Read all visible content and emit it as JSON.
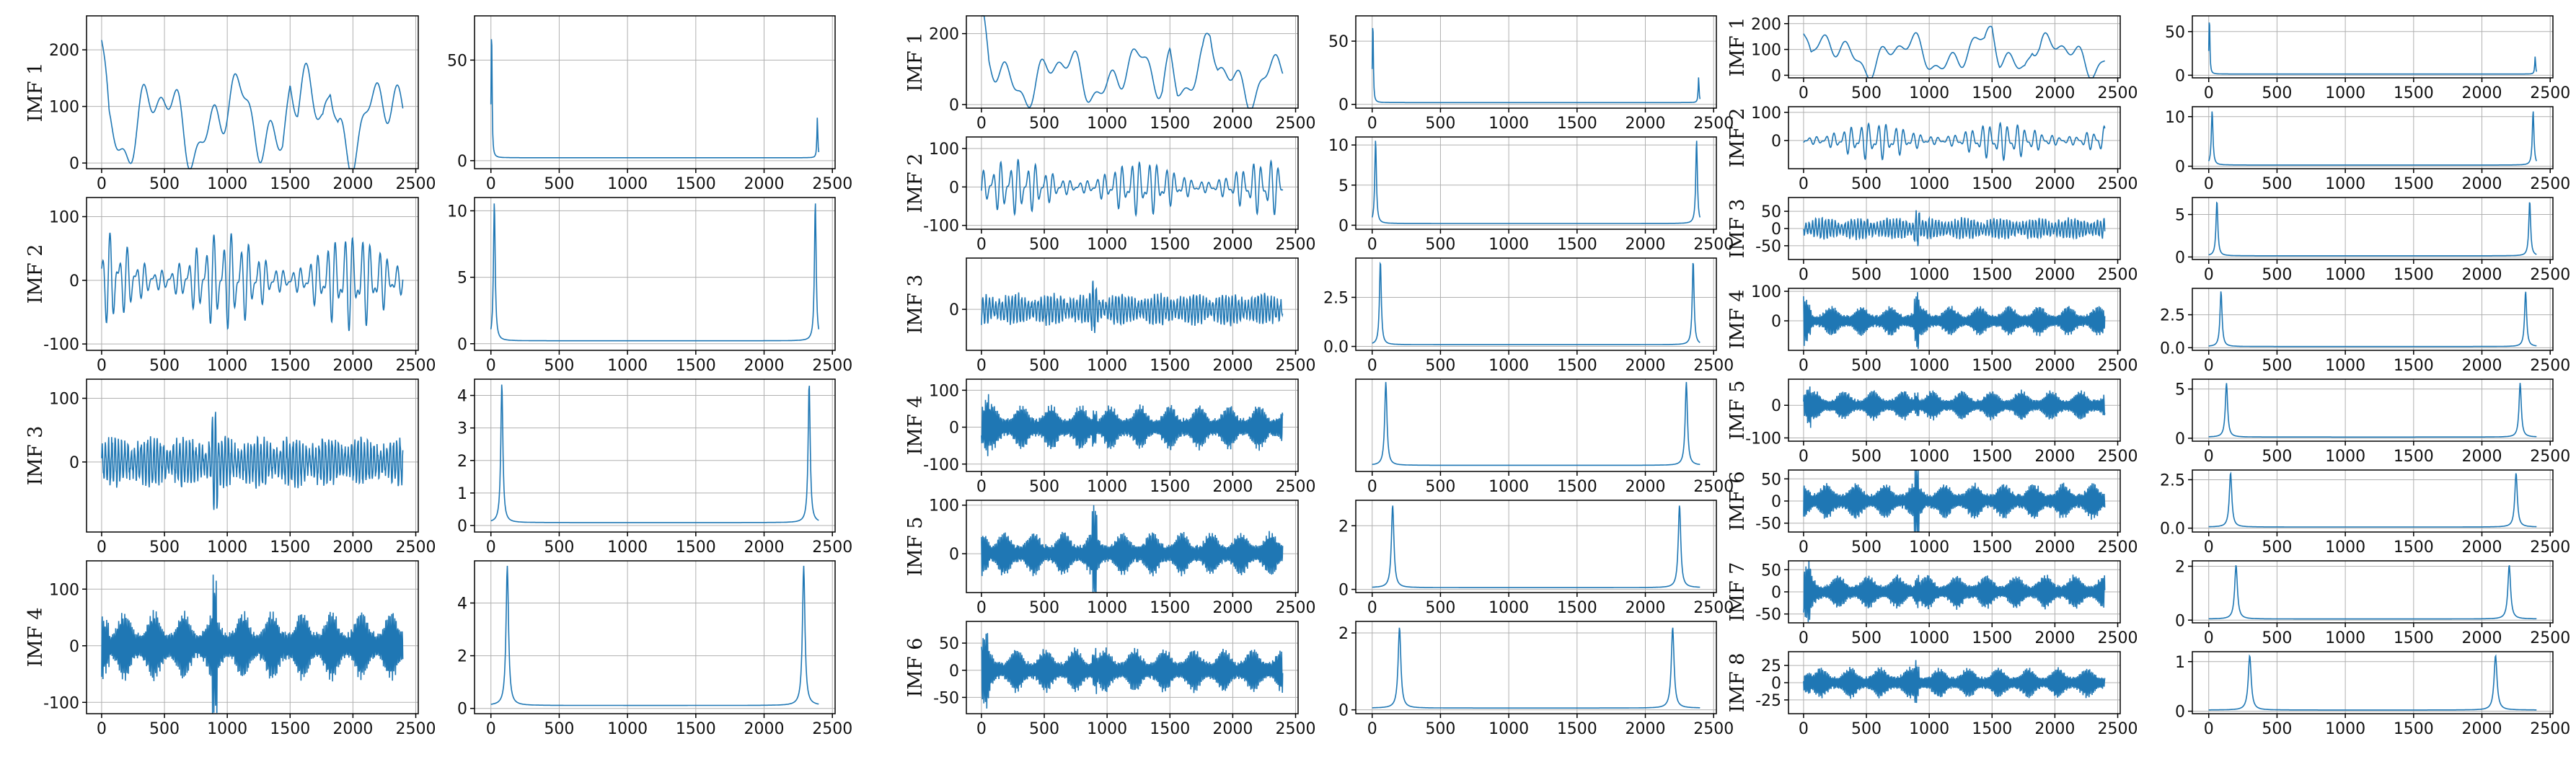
{
  "colors": {
    "line": "#1f77b4",
    "grid": "#b0b0b0",
    "frame": "#000000"
  },
  "x_ticks": [
    "0",
    "500",
    "1000",
    "1500",
    "2000",
    "2500"
  ],
  "chart_data": [
    {
      "type": "line",
      "group": "left",
      "xlim": [
        0,
        2500
      ],
      "rows": [
        {
          "label": "IMF 1",
          "signal": {
            "yticks": [
              "0",
              "100",
              "200"
            ],
            "ylim": [
              -10,
              260
            ],
            "shape": "smooth",
            "amp": 90,
            "base": 75
          },
          "spectrum": {
            "yticks": [
              "0",
              "50"
            ],
            "ylim": [
              -4,
              72
            ],
            "peaks": [
              [
                5,
                68
              ],
              [
                2390,
                20
              ]
            ],
            "width": 8
          }
        },
        {
          "label": "IMF 2",
          "signal": {
            "yticks": [
              "-100",
              "0",
              "100"
            ],
            "ylim": [
              -110,
              130
            ],
            "shape": "osc",
            "amp": 80,
            "base": 0
          },
          "spectrum": {
            "yticks": [
              "0",
              "5",
              "10"
            ],
            "ylim": [
              -0.5,
              11
            ],
            "peaks": [
              [
                25,
                10.5
              ],
              [
                2375,
                10.5
              ]
            ],
            "width": 15
          }
        },
        {
          "label": "IMF 3",
          "signal": {
            "yticks": [
              "0",
              "100"
            ],
            "ylim": [
              -110,
              130
            ],
            "shape": "burst",
            "amp": 70,
            "base": 0
          },
          "spectrum": {
            "yticks": [
              "0",
              "1",
              "2",
              "3",
              "4"
            ],
            "ylim": [
              -0.2,
              4.5
            ],
            "peaks": [
              [
                80,
                4.3
              ],
              [
                2330,
                4.3
              ]
            ],
            "width": 18
          }
        },
        {
          "label": "IMF 4",
          "signal": {
            "yticks": [
              "-100",
              "0",
              "100"
            ],
            "ylim": [
              -120,
              150
            ],
            "shape": "dense",
            "amp": 60,
            "base": 0
          },
          "spectrum": {
            "yticks": [
              "0",
              "2",
              "4"
            ],
            "ylim": [
              -0.2,
              5.6
            ],
            "peaks": [
              [
                120,
                5.3
              ],
              [
                2290,
                5.3
              ]
            ],
            "width": 22
          }
        }
      ]
    },
    {
      "type": "line",
      "group": "middle",
      "xlim": [
        0,
        2500
      ],
      "rows": [
        {
          "label": "IMF 1",
          "signal": {
            "yticks": [
              "0",
              "200"
            ],
            "ylim": [
              -10,
              250
            ],
            "shape": "smooth",
            "amp": 90,
            "base": 80
          },
          "spectrum": {
            "yticks": [
              "0",
              "50"
            ],
            "ylim": [
              -3,
              70
            ],
            "peaks": [
              [
                5,
                68
              ],
              [
                2390,
                20
              ]
            ],
            "width": 8
          }
        },
        {
          "label": "IMF 2",
          "signal": {
            "yticks": [
              "-100",
              "0",
              "100"
            ],
            "ylim": [
              -110,
              130
            ],
            "shape": "osc",
            "amp": 75,
            "base": 0
          },
          "spectrum": {
            "yticks": [
              "0",
              "5",
              "10"
            ],
            "ylim": [
              -0.5,
              11
            ],
            "peaks": [
              [
                25,
                10.5
              ],
              [
                2375,
                10.5
              ]
            ],
            "width": 14
          }
        },
        {
          "label": "IMF 3",
          "signal": {
            "yticks": [
              "0"
            ],
            "ylim": [
              -80,
              100
            ],
            "shape": "burst",
            "amp": 55,
            "base": 0
          },
          "spectrum": {
            "yticks": [
              "0.0",
              "2.5"
            ],
            "ylim": [
              -0.2,
              4.5
            ],
            "peaks": [
              [
                60,
                4.3
              ],
              [
                2350,
                4.3
              ]
            ],
            "width": 16
          }
        },
        {
          "label": "IMF 4",
          "signal": {
            "yticks": [
              "-100",
              "0",
              "100"
            ],
            "ylim": [
              -120,
              130
            ],
            "shape": "dense",
            "amp": 60,
            "base": 0
          },
          "spectrum": {
            "yticks": [],
            "ylim": [
              -0.2,
              4
            ],
            "peaks": [
              [
                100,
                3.8
              ],
              [
                2300,
                3.8
              ]
            ],
            "width": 20
          }
        },
        {
          "label": "IMF 5",
          "signal": {
            "yticks": [
              "0",
              "100"
            ],
            "ylim": [
              -80,
              110
            ],
            "shape": "dense",
            "amp": 45,
            "base": 0
          },
          "spectrum": {
            "yticks": [
              "0",
              "2"
            ],
            "ylim": [
              -0.1,
              2.8
            ],
            "peaks": [
              [
                150,
                2.6
              ],
              [
                2250,
                2.6
              ]
            ],
            "width": 22
          }
        },
        {
          "label": "IMF 6",
          "signal": {
            "yticks": [
              "-50",
              "0",
              "50"
            ],
            "ylim": [
              -80,
              90
            ],
            "shape": "dense",
            "amp": 40,
            "base": 0
          },
          "spectrum": {
            "yticks": [
              "0",
              "2"
            ],
            "ylim": [
              -0.1,
              2.3
            ],
            "peaks": [
              [
                200,
                2.1
              ],
              [
                2200,
                2.1
              ]
            ],
            "width": 24
          }
        }
      ]
    },
    {
      "type": "line",
      "group": "right",
      "xlim": [
        0,
        2500
      ],
      "rows": [
        {
          "label": "IMF 1",
          "signal": {
            "yticks": [
              "0",
              "100",
              "200"
            ],
            "ylim": [
              -10,
              230
            ],
            "shape": "smooth",
            "amp": 90,
            "base": 80
          },
          "spectrum": {
            "yticks": [
              "0",
              "50"
            ],
            "ylim": [
              -3,
              68
            ],
            "peaks": [
              [
                5,
                68
              ],
              [
                2390,
                20
              ]
            ],
            "width": 8
          }
        },
        {
          "label": "IMF 2",
          "signal": {
            "yticks": [
              "0",
              "100"
            ],
            "ylim": [
              -100,
              120
            ],
            "shape": "osc",
            "amp": 70,
            "base": 0
          },
          "spectrum": {
            "yticks": [
              "0",
              "10"
            ],
            "ylim": [
              -0.5,
              12
            ],
            "peaks": [
              [
                25,
                11
              ],
              [
                2375,
                11
              ]
            ],
            "width": 14
          }
        },
        {
          "label": "IMF 3",
          "signal": {
            "yticks": [
              "-50",
              "0",
              "50"
            ],
            "ylim": [
              -90,
              90
            ],
            "shape": "burst",
            "amp": 55,
            "base": 0
          },
          "spectrum": {
            "yticks": [
              "0",
              "5"
            ],
            "ylim": [
              -0.3,
              7
            ],
            "peaks": [
              [
                60,
                6.5
              ],
              [
                2350,
                6.5
              ]
            ],
            "width": 16
          }
        },
        {
          "label": "IMF 4",
          "signal": {
            "yticks": [
              "0",
              "100"
            ],
            "ylim": [
              -100,
              110
            ],
            "shape": "dense",
            "amp": 50,
            "base": 0
          },
          "spectrum": {
            "yticks": [
              "0.0",
              "2.5"
            ],
            "ylim": [
              -0.2,
              4.5
            ],
            "peaks": [
              [
                90,
                4.2
              ],
              [
                2320,
                4.2
              ]
            ],
            "width": 18
          }
        },
        {
          "label": "IMF 5",
          "signal": {
            "yticks": [
              "-100",
              "0"
            ],
            "ylim": [
              -110,
              80
            ],
            "shape": "dense",
            "amp": 45,
            "base": 0
          },
          "spectrum": {
            "yticks": [
              "0",
              "5"
            ],
            "ylim": [
              -0.3,
              6
            ],
            "peaks": [
              [
                130,
                5.5
              ],
              [
                2280,
                5.5
              ]
            ],
            "width": 20
          }
        },
        {
          "label": "IMF 6",
          "signal": {
            "yticks": [
              "-50",
              "0",
              "50"
            ],
            "ylim": [
              -70,
              70
            ],
            "shape": "dense",
            "amp": 40,
            "base": 0
          },
          "spectrum": {
            "yticks": [
              "0.0",
              "2.5"
            ],
            "ylim": [
              -0.2,
              3
            ],
            "peaks": [
              [
                160,
                2.8
              ],
              [
                2250,
                2.8
              ]
            ],
            "width": 22
          }
        },
        {
          "label": "IMF 7",
          "signal": {
            "yticks": [
              "-50",
              "0",
              "50"
            ],
            "ylim": [
              -70,
              70
            ],
            "shape": "dense",
            "amp": 38,
            "base": 0
          },
          "spectrum": {
            "yticks": [
              "0",
              "2"
            ],
            "ylim": [
              -0.1,
              2.2
            ],
            "peaks": [
              [
                200,
                2.0
              ],
              [
                2200,
                2.0
              ]
            ],
            "width": 24
          }
        },
        {
          "label": "IMF 8",
          "signal": {
            "yticks": [
              "-25",
              "0",
              "25"
            ],
            "ylim": [
              -45,
              45
            ],
            "shape": "dense",
            "amp": 22,
            "base": 0
          },
          "spectrum": {
            "yticks": [
              "0",
              "1"
            ],
            "ylim": [
              -0.05,
              1.2
            ],
            "peaks": [
              [
                300,
                1.1
              ],
              [
                2100,
                1.1
              ]
            ],
            "width": 26
          }
        }
      ]
    }
  ]
}
